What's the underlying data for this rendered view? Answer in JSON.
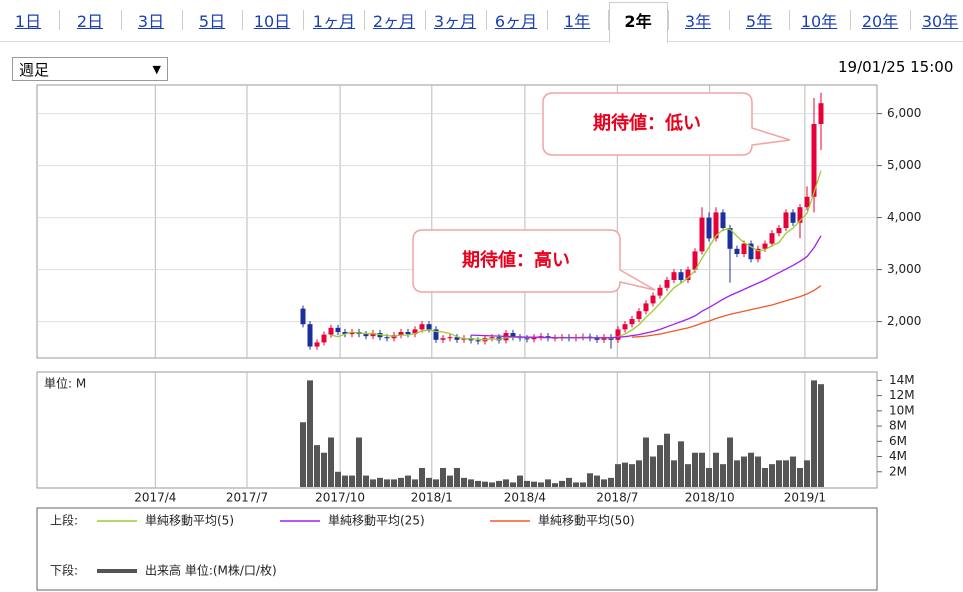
{
  "tabs": {
    "items": [
      "1日",
      "2日",
      "3日",
      "5日",
      "10日",
      "1ヶ月",
      "2ヶ月",
      "3ヶ月",
      "6ヶ月",
      "1年",
      "2年",
      "3年",
      "5年",
      "10年",
      "20年",
      "30年"
    ],
    "active": 10
  },
  "period_select": "週足",
  "timestamp": "19/01/25 15:00",
  "chart_data": [
    {
      "type": "candlestick",
      "legend_label": "上段:",
      "up_color": "#e8003a",
      "down_color": "#1c2f9e",
      "grid": true,
      "ylim": [
        1300,
        6550
      ],
      "yticks": [
        {
          "value": 2000,
          "label": "2,000"
        },
        {
          "value": 3000,
          "label": "3,000"
        },
        {
          "value": 4000,
          "label": "4,000"
        },
        {
          "value": 5000,
          "label": "5,000"
        },
        {
          "value": 6000,
          "label": "6,000"
        }
      ],
      "open": [
        2250,
        1950,
        1520,
        1600,
        1750,
        1880,
        1800,
        1760,
        1800,
        1760,
        1720,
        1780,
        1700,
        1680,
        1740,
        1800,
        1760,
        1850,
        1950,
        1850,
        1650,
        1680,
        1700,
        1650,
        1680,
        1640,
        1620,
        1680,
        1700,
        1640,
        1780,
        1700,
        1680,
        1660,
        1700,
        1720,
        1680,
        1690,
        1700,
        1680,
        1700,
        1710,
        1680,
        1650,
        1700,
        1650,
        1850,
        1950,
        2050,
        2200,
        2350,
        2500,
        2650,
        2800,
        2950,
        2800,
        3000,
        3350,
        4000,
        3600,
        4100,
        3800,
        3400,
        3300,
        3500,
        3200,
        3400,
        3500,
        3700,
        3800,
        4100,
        3900,
        4200,
        4400,
        5800
      ],
      "high": [
        2310,
        2010,
        1660,
        1810,
        1940,
        1940,
        1860,
        1860,
        1860,
        1820,
        1840,
        1840,
        1760,
        1800,
        1860,
        1860,
        1910,
        2010,
        2010,
        1910,
        1740,
        1760,
        1760,
        1740,
        1740,
        1700,
        1740,
        1760,
        1760,
        1840,
        1840,
        1760,
        1740,
        1760,
        1780,
        1780,
        1750,
        1760,
        1760,
        1760,
        1770,
        1770,
        1740,
        1760,
        1760,
        1910,
        2010,
        2110,
        2260,
        2410,
        2560,
        2710,
        2860,
        3010,
        3010,
        3060,
        3410,
        4200,
        4100,
        4200,
        4160,
        3860,
        3460,
        3560,
        3560,
        3460,
        3560,
        3760,
        3860,
        4160,
        4160,
        4260,
        4600,
        6300,
        6400
      ],
      "low": [
        1890,
        1460,
        1460,
        1540,
        1690,
        1740,
        1700,
        1700,
        1700,
        1660,
        1660,
        1640,
        1620,
        1620,
        1680,
        1700,
        1700,
        1790,
        1790,
        1590,
        1590,
        1620,
        1590,
        1590,
        1580,
        1560,
        1560,
        1620,
        1580,
        1580,
        1640,
        1620,
        1600,
        1600,
        1640,
        1620,
        1620,
        1630,
        1620,
        1620,
        1640,
        1620,
        1590,
        1590,
        1480,
        1590,
        1790,
        1890,
        1990,
        2140,
        2290,
        2440,
        2590,
        2740,
        2740,
        2740,
        2940,
        3290,
        3540,
        3540,
        3740,
        2750,
        3240,
        3240,
        3140,
        3140,
        3340,
        3440,
        3640,
        3740,
        3840,
        3600,
        4140,
        4100,
        5300
      ],
      "close": [
        1950,
        1520,
        1600,
        1750,
        1880,
        1800,
        1760,
        1800,
        1760,
        1720,
        1780,
        1700,
        1680,
        1740,
        1800,
        1760,
        1850,
        1950,
        1850,
        1650,
        1680,
        1700,
        1650,
        1680,
        1640,
        1620,
        1680,
        1700,
        1640,
        1780,
        1700,
        1680,
        1660,
        1700,
        1720,
        1680,
        1690,
        1700,
        1680,
        1700,
        1710,
        1680,
        1650,
        1700,
        1650,
        1850,
        1950,
        2050,
        2200,
        2350,
        2500,
        2650,
        2800,
        2950,
        2800,
        3000,
        3350,
        4000,
        3600,
        4100,
        3800,
        3400,
        3300,
        3500,
        3200,
        3400,
        3500,
        3700,
        3800,
        4100,
        3900,
        4200,
        4400,
        5800,
        6200
      ],
      "moving_averages": [
        {
          "name": "単純移動平均(5)",
          "color": "#9acd32",
          "values": [
            null,
            null,
            null,
            null,
            1740,
            1710,
            1760,
            1800,
            1780,
            1770,
            1770,
            1750,
            1730,
            1720,
            1740,
            1740,
            1770,
            1820,
            1840,
            1810,
            1800,
            1770,
            1710,
            1670,
            1670,
            1660,
            1650,
            1670,
            1660,
            1690,
            1700,
            1700,
            1690,
            1700,
            1690,
            1690,
            1690,
            1700,
            1690,
            1690,
            1700,
            1690,
            1690,
            1690,
            1680,
            1710,
            1760,
            1840,
            1940,
            2080,
            2210,
            2350,
            2500,
            2650,
            2740,
            2840,
            2980,
            3220,
            3430,
            3650,
            3770,
            3780,
            3640,
            3520,
            3440,
            3360,
            3380,
            3460,
            3520,
            3700,
            3800,
            3940,
            4080,
            4480,
            4900
          ]
        },
        {
          "name": "単純移動平均(25)",
          "color": "#a020f0",
          "values": [
            null,
            null,
            null,
            null,
            null,
            null,
            null,
            null,
            null,
            null,
            null,
            null,
            null,
            null,
            null,
            null,
            null,
            null,
            null,
            null,
            null,
            null,
            null,
            null,
            1740,
            1735,
            1730,
            1725,
            1720,
            1715,
            1710,
            1705,
            1700,
            1700,
            1695,
            1695,
            1690,
            1690,
            1690,
            1690,
            1690,
            1690,
            1690,
            1690,
            1690,
            1700,
            1710,
            1730,
            1750,
            1780,
            1810,
            1850,
            1900,
            1950,
            2000,
            2050,
            2110,
            2200,
            2270,
            2350,
            2430,
            2500,
            2560,
            2620,
            2680,
            2740,
            2800,
            2870,
            2940,
            3010,
            3080,
            3160,
            3250,
            3420,
            3650
          ]
        },
        {
          "name": "単純移動平均(50)",
          "color": "#f05a28",
          "values": [
            null,
            null,
            null,
            null,
            null,
            null,
            null,
            null,
            null,
            null,
            null,
            null,
            null,
            null,
            null,
            null,
            null,
            null,
            null,
            null,
            null,
            null,
            null,
            null,
            null,
            null,
            null,
            null,
            null,
            null,
            null,
            null,
            null,
            null,
            null,
            null,
            null,
            null,
            null,
            null,
            null,
            null,
            null,
            null,
            null,
            null,
            null,
            1700,
            1710,
            1720,
            1740,
            1760,
            1790,
            1820,
            1850,
            1880,
            1920,
            1970,
            2010,
            2060,
            2100,
            2140,
            2170,
            2200,
            2230,
            2260,
            2290,
            2320,
            2360,
            2400,
            2440,
            2480,
            2530,
            2600,
            2690
          ]
        }
      ],
      "annotations": [
        "期待値：高い",
        "期待値：低い"
      ]
    },
    {
      "type": "bar",
      "legend_label": "下段:",
      "unit_label": "単位: M",
      "name": "出来高 単位:(M株/口/枚)",
      "color": "#555555",
      "ylim": [
        0,
        15.1
      ],
      "yticks": [
        {
          "value": 2,
          "label": "2M"
        },
        {
          "value": 4,
          "label": "4M"
        },
        {
          "value": 6,
          "label": "6M"
        },
        {
          "value": 8,
          "label": "8M"
        },
        {
          "value": 10,
          "label": "10M"
        },
        {
          "value": 12,
          "label": "12M"
        },
        {
          "value": 14,
          "label": "14M"
        }
      ],
      "xlim": [
        -38,
        82
      ],
      "xticks": [
        {
          "value": -21.1,
          "label": "2017/4"
        },
        {
          "value": -8,
          "label": "2017/7"
        },
        {
          "value": 5.3,
          "label": "2017/10"
        },
        {
          "value": 18.4,
          "label": "2018/1"
        },
        {
          "value": 31.7,
          "label": "2018/4"
        },
        {
          "value": 44.9,
          "label": "2018/7"
        },
        {
          "value": 58.1,
          "label": "2018/10"
        },
        {
          "value": 71.7,
          "label": "2019/1"
        }
      ],
      "values": [
        8.5,
        14,
        5.5,
        4.5,
        6.5,
        2,
        1.5,
        1.5,
        6.5,
        1.5,
        1,
        1.2,
        1,
        1,
        1.2,
        1.5,
        1,
        2.5,
        1.2,
        1,
        2.5,
        1.5,
        2.5,
        1.2,
        1,
        0.8,
        0.7,
        0.6,
        0.8,
        1,
        0.6,
        1.5,
        0.8,
        0.7,
        0.6,
        1,
        0.5,
        0.8,
        1.2,
        0.6,
        0.6,
        1.8,
        1.5,
        1,
        1.2,
        3,
        3.2,
        3,
        3.5,
        6.5,
        4,
        5.5,
        7,
        3.5,
        6,
        3,
        4.5,
        4.5,
        2.5,
        4.5,
        3,
        6.5,
        3.5,
        4,
        4.5,
        4,
        2.5,
        3,
        3.5,
        3.5,
        4,
        2.5,
        3.5,
        14,
        13.5
      ]
    }
  ]
}
